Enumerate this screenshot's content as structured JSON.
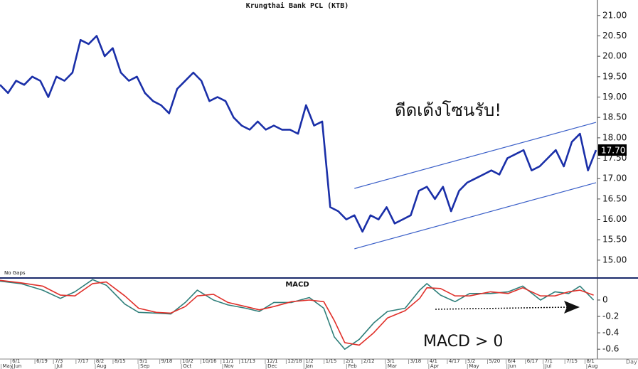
{
  "chart_data": [
    {
      "type": "line",
      "title": "Krungthai Bank PCL (KTB)",
      "annotation": "ดีดเด้งโซนรับ!",
      "x": [
        0,
        1,
        2,
        3,
        4,
        5,
        6,
        7,
        8,
        9,
        10,
        11,
        12,
        13,
        14,
        15,
        16,
        17,
        18,
        19,
        20,
        21,
        22,
        23,
        24,
        25,
        26,
        27,
        28,
        29,
        30,
        31,
        32,
        33,
        34,
        35,
        36,
        37,
        38,
        39,
        40,
        41,
        42,
        43,
        44,
        45,
        46,
        47,
        48,
        49,
        50,
        51,
        52,
        53,
        54,
        55,
        56,
        57,
        58,
        59,
        60,
        61,
        62,
        63,
        64,
        65,
        66,
        67,
        68,
        69,
        70,
        71,
        72,
        73,
        74
      ],
      "series": [
        {
          "color": "#1a2fa8",
          "values": [
            19.3,
            19.1,
            19.4,
            19.3,
            19.5,
            19.4,
            19.0,
            19.5,
            19.4,
            19.6,
            20.4,
            20.3,
            20.5,
            20.0,
            20.2,
            19.6,
            19.4,
            19.5,
            19.1,
            18.9,
            18.8,
            18.6,
            19.2,
            19.4,
            19.6,
            19.4,
            18.9,
            19.0,
            18.9,
            18.5,
            18.3,
            18.2,
            18.4,
            18.2,
            18.3,
            18.2,
            18.2,
            18.1,
            18.8,
            18.3,
            18.4,
            16.3,
            16.2,
            16.0,
            16.1,
            15.7,
            16.1,
            16.0,
            16.3,
            15.9,
            16.0,
            16.1,
            16.7,
            16.8,
            16.5,
            16.8,
            16.2,
            16.7,
            16.9,
            17.0,
            17.1,
            17.2,
            17.1,
            17.5,
            17.6,
            17.7,
            17.2,
            17.3,
            17.5,
            17.7,
            17.3,
            17.9,
            18.1,
            17.2,
            17.7
          ]
        }
      ],
      "trendlines": [
        {
          "color": "#3a5fc8",
          "x": [
            44,
            74
          ],
          "values": [
            16.76,
            18.38
          ]
        },
        {
          "color": "#3a5fc8",
          "x": [
            44,
            74
          ],
          "values": [
            15.28,
            16.9
          ]
        }
      ],
      "current_price": {
        "value": 17.7,
        "label": "17.70"
      },
      "xlim": [
        0,
        74
      ],
      "ylim": [
        14.58,
        21.38
      ],
      "yticks": [
        {
          "value": 15,
          "label": "15.00"
        },
        {
          "value": 15.5,
          "label": "15.50"
        },
        {
          "value": 16,
          "label": "16.00"
        },
        {
          "value": 16.5,
          "label": "16.50"
        },
        {
          "value": 17,
          "label": "17.00"
        },
        {
          "value": 17.5,
          "label": "17.50"
        },
        {
          "value": 18,
          "label": "18.00"
        },
        {
          "value": 18.5,
          "label": "18.50"
        },
        {
          "value": 19,
          "label": "19.00"
        },
        {
          "value": 19.5,
          "label": "19.50"
        },
        {
          "value": 20,
          "label": "20.00"
        },
        {
          "value": 20.5,
          "label": "20.50"
        },
        {
          "value": 21,
          "label": "21.00"
        }
      ],
      "grid": false
    },
    {
      "type": "line",
      "title": "MACD",
      "note": "No Gaps",
      "annotation": "MACD > 0",
      "x_label": "Day",
      "x": [
        0,
        2.6,
        5.3,
        7.5,
        9.3,
        11.5,
        13.2,
        15.5,
        17.2,
        19.4,
        21.2,
        23,
        24.5,
        26.5,
        28.3,
        30.5,
        32.2,
        34,
        36.2,
        38.4,
        40.2,
        41.5,
        42.8,
        44.6,
        46.4,
        48.1,
        50.3,
        52.1,
        53,
        54.7,
        56.5,
        58.3,
        60.9,
        63.1,
        64.9,
        67.1,
        68.9,
        70.6,
        72,
        73.7
      ],
      "series": [
        {
          "color": "#2f7f7a",
          "values": [
            0.23,
            0.2,
            0.12,
            0.02,
            0.1,
            0.25,
            0.18,
            -0.05,
            -0.15,
            -0.16,
            -0.17,
            -0.03,
            0.12,
            0.0,
            -0.06,
            -0.1,
            -0.14,
            -0.03,
            -0.03,
            0.03,
            -0.1,
            -0.45,
            -0.6,
            -0.48,
            -0.28,
            -0.14,
            -0.1,
            0.12,
            0.2,
            0.06,
            -0.02,
            0.08,
            0.08,
            0.1,
            0.17,
            0.0,
            0.1,
            0.08,
            0.17,
            0.0
          ]
        },
        {
          "color": "#e0302a",
          "values": [
            0.24,
            0.21,
            0.17,
            0.06,
            0.05,
            0.2,
            0.22,
            0.05,
            -0.1,
            -0.15,
            -0.16,
            -0.08,
            0.05,
            0.07,
            -0.03,
            -0.08,
            -0.12,
            -0.08,
            -0.02,
            0.0,
            -0.02,
            -0.25,
            -0.52,
            -0.55,
            -0.4,
            -0.22,
            -0.13,
            0.02,
            0.15,
            0.14,
            0.05,
            0.05,
            0.1,
            0.08,
            0.15,
            0.05,
            0.05,
            0.1,
            0.12,
            0.06
          ]
        }
      ],
      "xlim": [
        0,
        74
      ],
      "ylim": [
        -0.72,
        0.26
      ],
      "yticks": [
        0,
        -0.2,
        -0.4,
        -0.6
      ],
      "xticks": [
        {
          "value": 1.6,
          "label": "6/1"
        },
        {
          "value": 4.6,
          "label": "6/19"
        },
        {
          "value": 6.9,
          "label": "7/3"
        },
        {
          "value": 9.7,
          "label": "7/17"
        },
        {
          "value": 12,
          "label": "8/2"
        },
        {
          "value": 14.3,
          "label": "8/15"
        },
        {
          "value": 17.4,
          "label": "9/1"
        },
        {
          "value": 20.1,
          "label": "9/18"
        },
        {
          "value": 22.7,
          "label": "10/2"
        },
        {
          "value": 25.2,
          "label": "10/16"
        },
        {
          "value": 27.7,
          "label": "11/1"
        },
        {
          "value": 30,
          "label": "11/13"
        },
        {
          "value": 33.2,
          "label": "12/1"
        },
        {
          "value": 35.8,
          "label": "12/18"
        },
        {
          "value": 38,
          "label": "1/2"
        },
        {
          "value": 40.5,
          "label": "1/15"
        },
        {
          "value": 43,
          "label": "2/1"
        },
        {
          "value": 45.2,
          "label": "2/12"
        },
        {
          "value": 48.1,
          "label": "3/1"
        },
        {
          "value": 51,
          "label": "3/18"
        },
        {
          "value": 53.4,
          "label": "4/1"
        },
        {
          "value": 55.8,
          "label": "4/17"
        },
        {
          "value": 58.1,
          "label": "5/2"
        },
        {
          "value": 60.8,
          "label": "5/20"
        },
        {
          "value": 63.1,
          "label": "6/4"
        },
        {
          "value": 65.5,
          "label": "6/17"
        },
        {
          "value": 67.7,
          "label": "7/1"
        },
        {
          "value": 70.4,
          "label": "7/15"
        },
        {
          "value": 72.9,
          "label": "8/1"
        }
      ],
      "month_ticks": [
        {
          "value": 0.4,
          "label": "May"
        },
        {
          "value": 1.8,
          "label": "Jun"
        },
        {
          "value": 7.1,
          "label": "Jul"
        },
        {
          "value": 12.1,
          "label": "Aug"
        },
        {
          "value": 17.5,
          "label": "Sep"
        },
        {
          "value": 22.8,
          "label": "Oct"
        },
        {
          "value": 27.9,
          "label": "Nov"
        },
        {
          "value": 33.3,
          "label": "Dec"
        },
        {
          "value": 38,
          "label": "Jan"
        },
        {
          "value": 43.3,
          "label": "Feb"
        },
        {
          "value": 48.2,
          "label": "Mar"
        },
        {
          "value": 53.5,
          "label": "Apr"
        },
        {
          "value": 58.3,
          "label": "May"
        },
        {
          "value": 63.2,
          "label": "Jun"
        },
        {
          "value": 67.8,
          "label": "Jul"
        },
        {
          "value": 73.1,
          "label": "Aug"
        }
      ],
      "grid": false
    }
  ]
}
